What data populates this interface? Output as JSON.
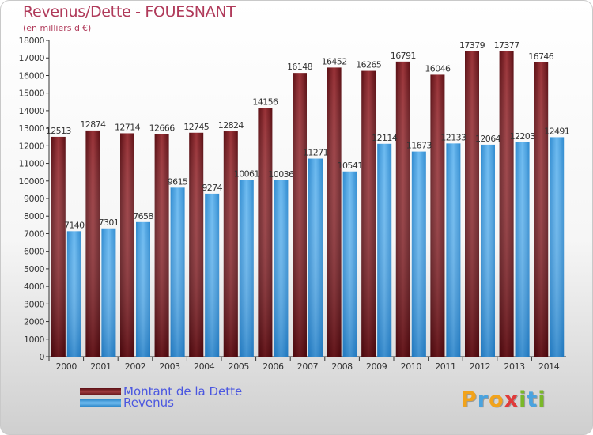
{
  "chart_data": {
    "type": "bar",
    "title": "Revenus/Dette - FOUESNANT",
    "subtitle": "(en milliers d'€)",
    "categories": [
      "2000",
      "2001",
      "2002",
      "2003",
      "2004",
      "2005",
      "2006",
      "2007",
      "2008",
      "2009",
      "2010",
      "2011",
      "2012",
      "2013",
      "2014"
    ],
    "series": [
      {
        "name": "Montant de la Dette",
        "color": "#7a1e24",
        "values": [
          12513,
          12874,
          12714,
          12666,
          12745,
          12824,
          14156,
          16148,
          16452,
          16265,
          16791,
          16046,
          17379,
          17377,
          16746
        ]
      },
      {
        "name": "Revenus",
        "color": "#3f9fe0",
        "values": [
          7140,
          7301,
          7658,
          9615,
          9274,
          10061,
          10036,
          11271,
          10541,
          12114,
          11673,
          12133,
          12064,
          12203,
          12491
        ]
      }
    ],
    "ylim": [
      0,
      18000
    ],
    "yticks": [
      0,
      1000,
      2000,
      3000,
      4000,
      5000,
      6000,
      7000,
      8000,
      9000,
      10000,
      11000,
      12000,
      13000,
      14000,
      15000,
      16000,
      17000,
      18000
    ],
    "grid": false,
    "legend_position": "bottom-left"
  },
  "logo": {
    "letters": [
      "P",
      "r",
      "o",
      "x",
      "i",
      "t",
      "i"
    ],
    "colors": [
      "#f2a31b",
      "#4aa3df",
      "#f2a31b",
      "#e03a3a",
      "#7ab829",
      "#4aa3df",
      "#7ab829"
    ]
  }
}
